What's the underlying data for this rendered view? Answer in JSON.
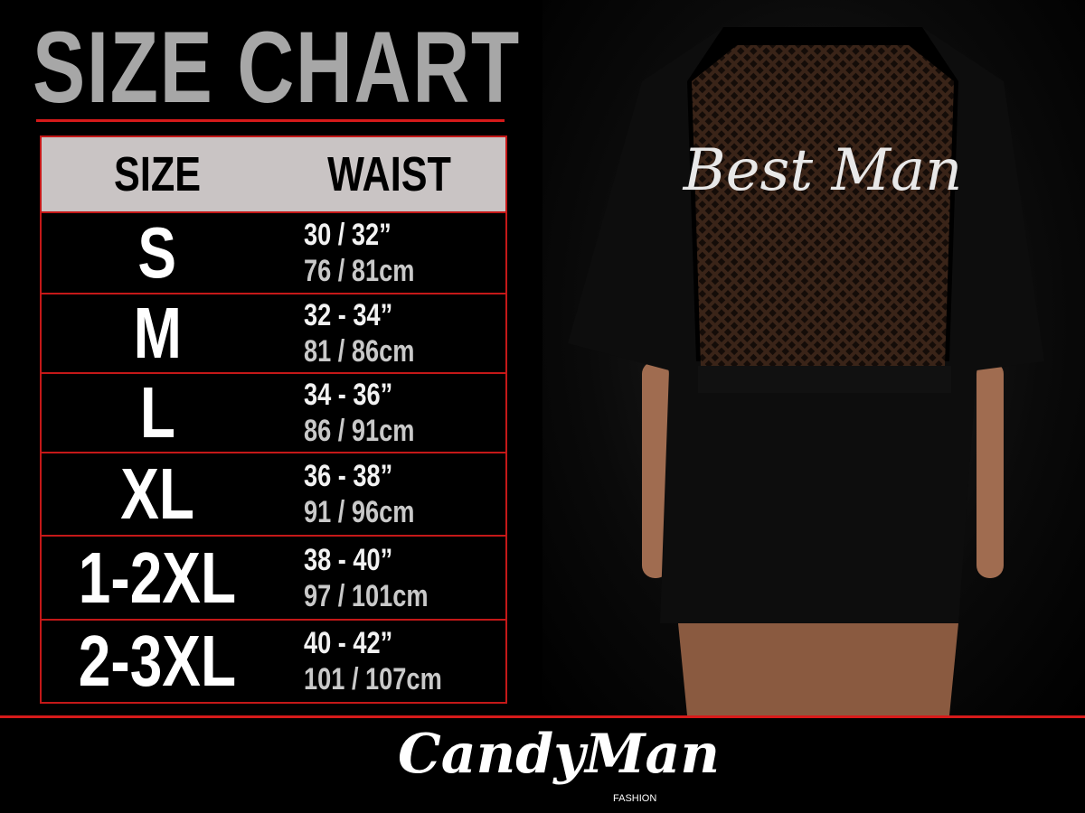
{
  "title": "SIZE CHART",
  "table": {
    "headers": [
      "SIZE",
      "WAIST"
    ],
    "rows": [
      {
        "size": "S",
        "inches": "30 / 32”",
        "cm": "76 / 81cm"
      },
      {
        "size": "M",
        "inches": "32 - 34”",
        "cm": "81 / 86cm"
      },
      {
        "size": "L",
        "inches": "34 - 36”",
        "cm": "86 / 91cm"
      },
      {
        "size": "XL",
        "inches": "36 - 38”",
        "cm": "91 / 96cm"
      },
      {
        "size": "1-2XL",
        "inches": "38 - 40”",
        "cm": "97 / 101cm"
      },
      {
        "size": "2-3XL",
        "inches": "40 - 42”",
        "cm": "101 / 107cm"
      }
    ]
  },
  "photo": {
    "garment_print": "Best Man"
  },
  "logo": {
    "brand": "CandyMan",
    "sub": "FASHION"
  },
  "colors": {
    "accent_red": "#d61a1a",
    "title_gray": "#a7a7a7",
    "header_bg": "#c9c4c4",
    "background": "#000000"
  }
}
